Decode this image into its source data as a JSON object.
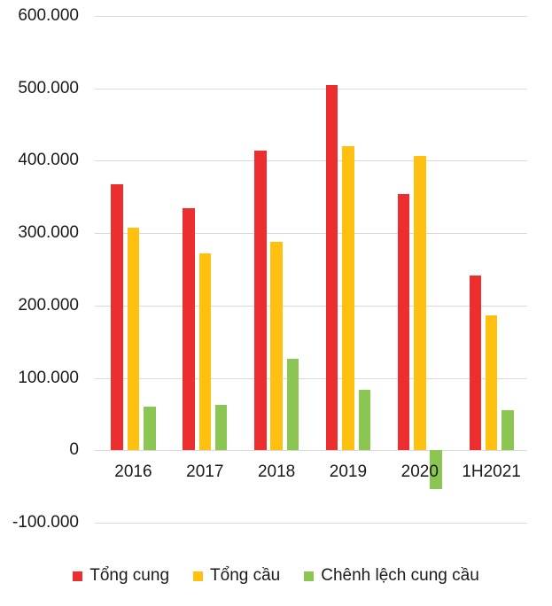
{
  "chart_data": {
    "type": "bar",
    "title": "",
    "xlabel": "",
    "ylabel": "",
    "categories": [
      "2016",
      "2017",
      "2018",
      "2019",
      "2020",
      "1H2021"
    ],
    "series": [
      {
        "name": "Tổng cung",
        "color": "#ED2E2E",
        "values": [
          368000,
          335000,
          414000,
          504000,
          354000,
          242000
        ]
      },
      {
        "name": "Tổng cầu",
        "color": "#FFC010",
        "values": [
          308000,
          272000,
          288000,
          420000,
          407000,
          186000
        ]
      },
      {
        "name": "Chênh lệch cung cầu",
        "color": "#8CC652",
        "values": [
          60000,
          63000,
          126000,
          84000,
          -53000,
          56000
        ]
      }
    ],
    "ylim": [
      -100000,
      600000
    ],
    "ytick_step": 100000,
    "yticks": [
      "600.000",
      "500.000",
      "400.000",
      "300.000",
      "200.000",
      "100.000",
      "0",
      "-100.000"
    ],
    "grid": true,
    "legend_position": "bottom"
  },
  "colors": {
    "grid": "#D9D9D9",
    "text": "#1A1A1A",
    "background": "#FFFFFF"
  }
}
